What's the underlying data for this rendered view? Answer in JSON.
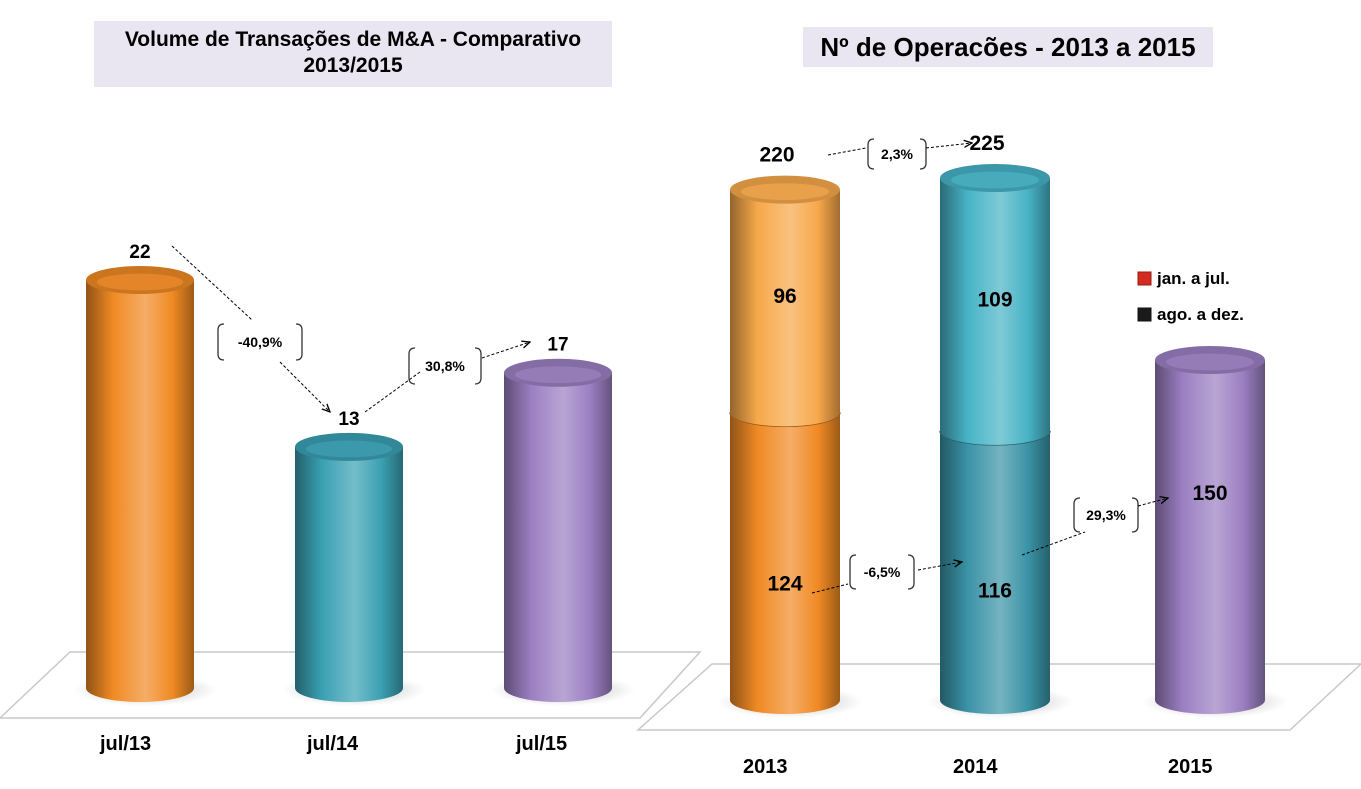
{
  "chart_data": [
    {
      "type": "bar",
      "title": "Volume de Transações de M&A - Comparativo\n2013/2015",
      "title_lines": [
        "Volume de Transações de M&A - Comparativo",
        "2013/2015"
      ],
      "categories": [
        "jul/13",
        "jul/14",
        "jul/15"
      ],
      "values": [
        22,
        13,
        17
      ],
      "value_labels": [
        "22",
        "13",
        "17"
      ],
      "colors": [
        "#f08a24",
        "#3aa0b3",
        "#9b7fc2"
      ],
      "changes": [
        {
          "from": "jul/13",
          "to": "jul/14",
          "label": "-40,9%"
        },
        {
          "from": "jul/14",
          "to": "jul/15",
          "label": "30,8%"
        }
      ],
      "xlabel": "",
      "ylabel": "",
      "ylim": [
        0,
        25
      ],
      "grid": false,
      "style": "3d-cylinder"
    },
    {
      "type": "bar",
      "stacked": true,
      "title": "Nº de Operacões  - 2013 a 2015",
      "categories": [
        "2013",
        "2014",
        "2015"
      ],
      "series": [
        {
          "name": "jan. a jul.",
          "values": [
            124,
            116,
            150
          ],
          "label_color": "#f4a6b4"
        },
        {
          "name": "ago. a dez.",
          "values": [
            96,
            109,
            null
          ],
          "label_color": "#000000"
        }
      ],
      "totals": [
        220,
        225,
        null
      ],
      "total_labels": [
        "220",
        "225"
      ],
      "colors": {
        "2013": {
          "bottom": "#f08a24",
          "top": "#f7a84a"
        },
        "2014": {
          "bottom": "#3a93a6",
          "top": "#47b3c6"
        },
        "2015": {
          "bottom": "#9b7fc2",
          "top": "#9b7fc2"
        }
      },
      "changes": [
        {
          "from": "2013",
          "to": "2014",
          "label": "2,3%",
          "basis": "total"
        },
        {
          "from": "2013",
          "to": "2014",
          "label": "-6,5%",
          "basis": "jan. a jul."
        },
        {
          "from": "2014",
          "to": "2015",
          "label": "29,3%",
          "basis": "jan. a jul."
        }
      ],
      "legend": {
        "position": "right",
        "entries": [
          {
            "label": "jan. a jul.",
            "color": "#d42a20"
          },
          {
            "label": "ago. a dez.",
            "color": "#1a1a1a"
          }
        ]
      },
      "xlabel": "",
      "ylabel": "",
      "ylim": [
        0,
        240
      ],
      "grid": false,
      "style": "3d-cylinder"
    }
  ]
}
